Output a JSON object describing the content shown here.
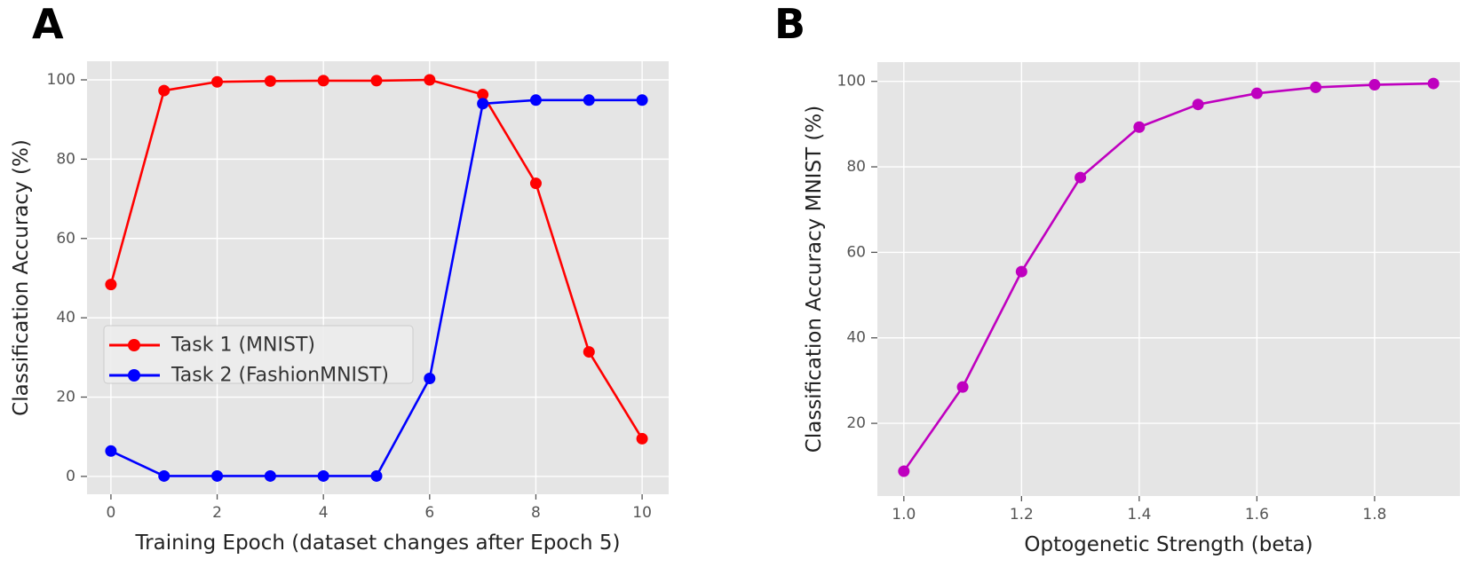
{
  "page": {
    "background": "#ffffff"
  },
  "panels": [
    {
      "label": "A"
    },
    {
      "label": "B"
    }
  ],
  "style": {
    "plot_background": "#e5e5e5",
    "grid_color": "#ffffff",
    "tick_label_color": "#555555",
    "axis_label_color": "#222222",
    "legend_text_color": "#333333",
    "legend_background": "#ececec",
    "legend_border": "#cccccc",
    "task1_color": "#ff0000",
    "task2_color": "#0000ff",
    "beta_curve_color": "#bf00bf"
  },
  "chart_data": [
    {
      "type": "line",
      "panel": "A",
      "title": "",
      "xlabel": "Training Epoch (dataset changes after Epoch 5)",
      "ylabel": "Classification Accuracy (%)",
      "x": [
        0,
        1,
        2,
        3,
        4,
        5,
        6,
        7,
        8,
        9,
        10
      ],
      "series": [
        {
          "name": "Task 1 (MNIST)",
          "color": "#ff0000",
          "values": [
            48.4,
            97.3,
            99.5,
            99.7,
            99.8,
            99.8,
            100.0,
            96.3,
            73.9,
            31.4,
            9.5
          ]
        },
        {
          "name": "Task 2 (FashionMNIST)",
          "color": "#0000ff",
          "values": [
            6.4,
            0.1,
            0.1,
            0.1,
            0.1,
            0.1,
            24.7,
            94.0,
            94.9,
            94.9,
            94.9
          ]
        }
      ],
      "xticks": [
        0,
        2,
        4,
        6,
        8,
        10
      ],
      "xtick_labels": [
        "0",
        "2",
        "4",
        "6",
        "8",
        "10"
      ],
      "yticks": [
        0,
        20,
        40,
        60,
        80,
        100
      ],
      "ytick_labels": [
        "0",
        "20",
        "40",
        "60",
        "80",
        "100"
      ],
      "xlim": [
        -0.45,
        10.5
      ],
      "ylim": [
        -4.5,
        104.7
      ],
      "grid": true,
      "legend": {
        "visible": true,
        "position": "center left"
      }
    },
    {
      "type": "line",
      "panel": "B",
      "title": "",
      "xlabel": "Optogenetic Strength (beta)",
      "ylabel": "Classification Accuracy MNIST (%)",
      "x": [
        1.0,
        1.1,
        1.2,
        1.3,
        1.4,
        1.5,
        1.6,
        1.7,
        1.8,
        1.9
      ],
      "series": [
        {
          "name": "MNIST accuracy",
          "color": "#bf00bf",
          "values": [
            8.8,
            28.5,
            55.5,
            77.5,
            89.3,
            94.6,
            97.2,
            98.6,
            99.2,
            99.5
          ]
        }
      ],
      "xticks": [
        1.0,
        1.2,
        1.4,
        1.6,
        1.8
      ],
      "xtick_labels": [
        "1.0",
        "1.2",
        "1.4",
        "1.6",
        "1.8"
      ],
      "yticks": [
        20,
        40,
        60,
        80,
        100
      ],
      "ytick_labels": [
        "20",
        "40",
        "60",
        "80",
        "100"
      ],
      "xlim": [
        0.955,
        1.945
      ],
      "ylim": [
        3.0,
        104.5
      ],
      "grid": true,
      "legend": {
        "visible": false,
        "position": "none"
      }
    }
  ]
}
